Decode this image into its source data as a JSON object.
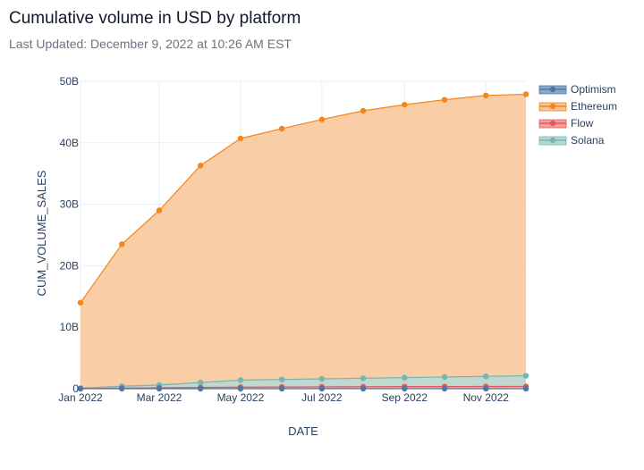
{
  "header": {
    "title": "Cumulative volume in USD by platform",
    "subtitle": "Last Updated: December 9, 2022 at 10:26 AM EST"
  },
  "chart_data": {
    "type": "area",
    "xlabel": "DATE",
    "ylabel": "CUM_VOLUME_SALES",
    "x": [
      "2022-01-01",
      "2022-02-01",
      "2022-03-01",
      "2022-04-01",
      "2022-05-01",
      "2022-06-01",
      "2022-07-01",
      "2022-08-01",
      "2022-09-01",
      "2022-10-01",
      "2022-11-01",
      "2022-12-01"
    ],
    "xlim": [
      "2022-01-01",
      "2022-12-01"
    ],
    "ylim": [
      0,
      50000000000
    ],
    "x_ticks": [
      {
        "date": "2022-01-01",
        "label": "Jan 2022"
      },
      {
        "date": "2022-03-01",
        "label": "Mar 2022"
      },
      {
        "date": "2022-05-01",
        "label": "May 2022"
      },
      {
        "date": "2022-07-01",
        "label": "Jul 2022"
      },
      {
        "date": "2022-09-01",
        "label": "Sep 2022"
      },
      {
        "date": "2022-11-01",
        "label": "Nov 2022"
      }
    ],
    "y_ticks": [
      {
        "value": 0,
        "label": "0"
      },
      {
        "value": 10000000000,
        "label": "10B"
      },
      {
        "value": 20000000000,
        "label": "20B"
      },
      {
        "value": 30000000000,
        "label": "30B"
      },
      {
        "value": 40000000000,
        "label": "40B"
      },
      {
        "value": 50000000000,
        "label": "50B"
      }
    ],
    "grid": true,
    "legend": "top-right",
    "series": [
      {
        "name": "Optimism",
        "color": "#4c78a8",
        "fill": "#8fa6c3",
        "values": [
          0,
          0,
          0,
          0,
          0,
          0,
          0,
          0,
          0,
          0,
          0,
          0
        ]
      },
      {
        "name": "Ethereum",
        "color": "#f58518",
        "fill": "#f8c495",
        "values": [
          14000000000,
          23500000000,
          29000000000,
          36300000000,
          40700000000,
          42300000000,
          43800000000,
          45200000000,
          46200000000,
          47000000000,
          47700000000,
          47900000000
        ]
      },
      {
        "name": "Flow",
        "color": "#e45756",
        "fill": "#eea3a3",
        "values": [
          0,
          100000000,
          150000000,
          200000000,
          250000000,
          280000000,
          300000000,
          320000000,
          340000000,
          350000000,
          360000000,
          370000000
        ]
      },
      {
        "name": "Solana",
        "color": "#72b7b2",
        "fill": "#b7d9d6",
        "values": [
          100000000,
          400000000,
          600000000,
          1000000000,
          1400000000,
          1500000000,
          1600000000,
          1700000000,
          1800000000,
          1900000000,
          2000000000,
          2100000000
        ]
      }
    ]
  }
}
